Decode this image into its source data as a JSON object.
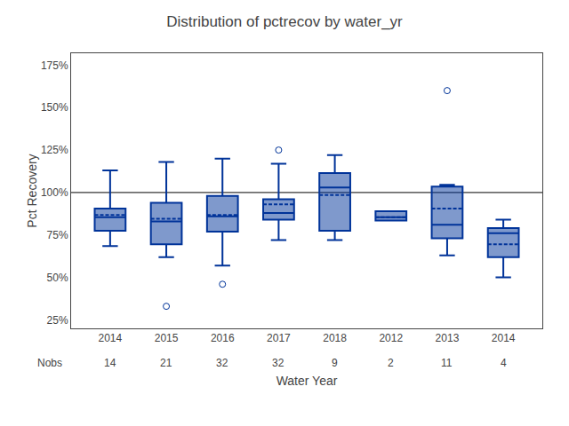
{
  "chart_data": {
    "type": "box",
    "title": "Distribution of pctrecov by water_yr",
    "xlabel": "Water Year",
    "ylabel": "Pct Recovery",
    "categories": [
      "2014",
      "2015",
      "2016",
      "2017",
      "2018",
      "2012",
      "2013",
      "2014"
    ],
    "boxes": [
      {
        "q1": 0.775,
        "median": 0.855,
        "q3": 0.905,
        "whislo": 0.685,
        "whishi": 1.13,
        "mean": 0.868,
        "fliers": []
      },
      {
        "q1": 0.695,
        "median": 0.83,
        "q3": 0.94,
        "whislo": 0.62,
        "whishi": 1.18,
        "mean": 0.845,
        "fliers": [
          0.33
        ]
      },
      {
        "q1": 0.77,
        "median": 0.86,
        "q3": 0.98,
        "whislo": 0.57,
        "whishi": 1.2,
        "mean": 0.868,
        "fliers": [
          0.46
        ]
      },
      {
        "q1": 0.84,
        "median": 0.88,
        "q3": 0.96,
        "whislo": 0.72,
        "whishi": 1.17,
        "mean": 0.93,
        "fliers": [
          1.25
        ]
      },
      {
        "q1": 0.775,
        "median": 1.03,
        "q3": 1.115,
        "whislo": 0.72,
        "whishi": 1.22,
        "mean": 0.985,
        "fliers": []
      },
      {
        "q1": 0.835,
        "median": 0.855,
        "q3": 0.89,
        "whislo": 0.835,
        "whishi": 0.89,
        "mean": 0.855,
        "fliers": []
      },
      {
        "q1": 0.73,
        "median": 0.81,
        "q3": 1.035,
        "whislo": 0.63,
        "whishi": 1.045,
        "mean": 0.905,
        "fliers": [
          1.6
        ]
      },
      {
        "q1": 0.62,
        "median": 0.76,
        "q3": 0.79,
        "whislo": 0.5,
        "whishi": 0.84,
        "mean": 0.695,
        "fliers": []
      }
    ],
    "nobs_label": "Nobs",
    "nobs": [
      14,
      21,
      32,
      32,
      9,
      2,
      11,
      4
    ],
    "ylim": [
      0.2,
      1.82
    ],
    "yticks": [
      {
        "value": 0.25,
        "label": "25%"
      },
      {
        "value": 0.5,
        "label": "50%"
      },
      {
        "value": 0.75,
        "label": "75%"
      },
      {
        "value": 1.0,
        "label": "100%"
      },
      {
        "value": 1.25,
        "label": "125%"
      },
      {
        "value": 1.5,
        "label": "150%"
      },
      {
        "value": 1.75,
        "label": "175%"
      }
    ],
    "hline": 1.0,
    "color": "#003399",
    "grid": false
  }
}
